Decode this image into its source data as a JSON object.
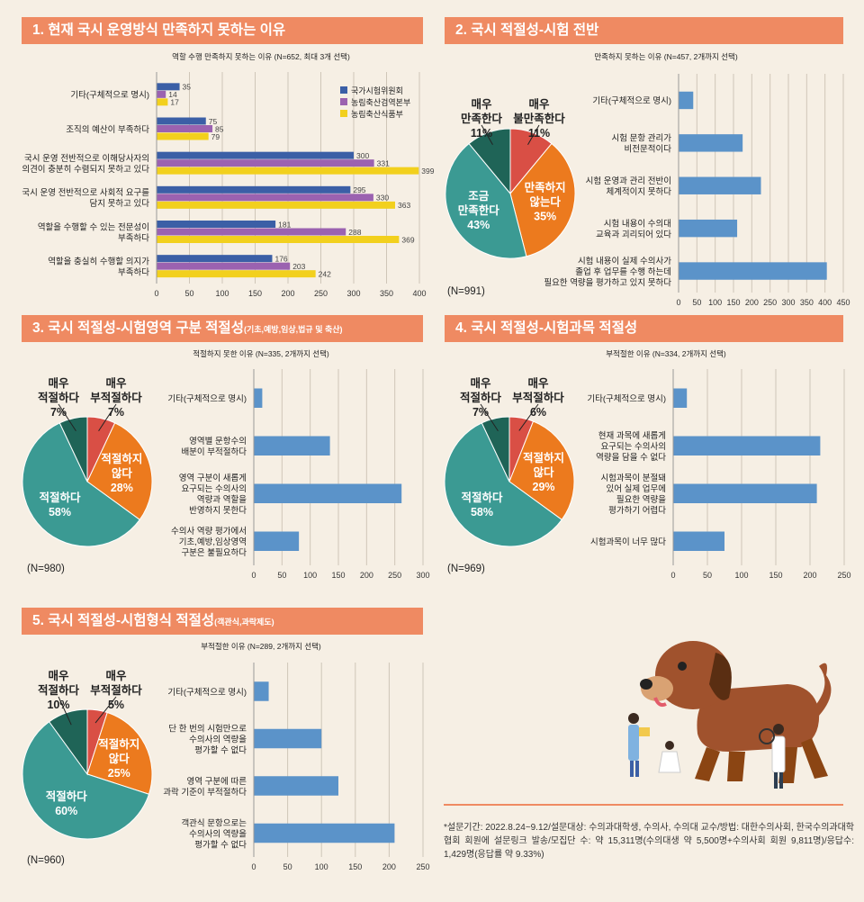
{
  "s1": {
    "title": "1. 현재 국시 운영방식 만족하지 못하는 이유",
    "subtitle": "역할 수행 만족하지 못하는 이유 (N=652, 최대 3개 선택)",
    "chart_data": {
      "type": "bar",
      "orientation": "horizontal",
      "categories": [
        "기타(구체적으로 명시)",
        "조직의 예산이 부족하다",
        "국시 운영 전반적으로 이해당사자의 의견이 충분히 수렴되지 못하고 있다",
        "국시 운영 전반적으로 사회적 요구를 담지 못하고 있다",
        "역할을 수행할 수 있는 전문성이 부족하다",
        "역할을 충실히 수행할 의지가 부족하다"
      ],
      "category_lines": [
        [
          "기타(구체적으로 명시)"
        ],
        [
          "조직의 예산이 부족하다"
        ],
        [
          "국시 운영 전반적으로 이해당사자의",
          "의견이 충분히 수렴되지 못하고 있다"
        ],
        [
          "국시 운영 전반적으로 사회적 요구를",
          "담지 못하고 있다"
        ],
        [
          "역할을 수행할 수 있는 전문성이",
          "부족하다"
        ],
        [
          "역할을 충실히 수행할 의지가",
          "부족하다"
        ]
      ],
      "series": [
        {
          "name": "국가시험위원회",
          "color": "#3b5fa6",
          "values": [
            35,
            75,
            300,
            295,
            181,
            176
          ]
        },
        {
          "name": "농림축산검역본부",
          "color": "#9b62b0",
          "values": [
            14,
            85,
            331,
            330,
            288,
            203
          ]
        },
        {
          "name": "농림축산식품부",
          "color": "#f2d01d",
          "values": [
            17,
            79,
            399,
            363,
            369,
            242
          ]
        }
      ],
      "xlim": [
        0,
        400
      ],
      "ticks": [
        0,
        50,
        100,
        150,
        200,
        250,
        300,
        350,
        400
      ]
    }
  },
  "s2": {
    "title": "2. 국시 적절성-시험 전반",
    "subtitle": "만족하지 못하는 이유 (N=457, 2개까지 선택)",
    "n": "(N=991)",
    "pie": {
      "type": "pie",
      "slices": [
        {
          "lines": [
            "매우",
            "불만족한다",
            "11%"
          ],
          "value": 11,
          "color": "#d94f45"
        },
        {
          "lines": [
            "만족하지",
            "않는다",
            "35%"
          ],
          "value": 35,
          "color": "#ec7a1e"
        },
        {
          "lines": [
            "조금",
            "만족한다",
            "43%"
          ],
          "value": 43,
          "color": "#3b9a93"
        },
        {
          "lines": [
            "매우",
            "만족한다",
            "11%"
          ],
          "value": 11,
          "color": "#1f6457"
        }
      ]
    },
    "chart_data": {
      "type": "bar",
      "orientation": "horizontal",
      "categories": [
        "기타(구체적으로 명시)",
        "시험 문항 관리가 비전문적이다",
        "시험 운영과 관리 전반이 체계적이지 못하다",
        "시험 내용이 수의대 교육과 괴리되어 있다",
        "시험 내용이 실제 수의사가 졸업 후 업무를 수행 하는데 필요한 역량을 평가하고 있지 못하다"
      ],
      "category_lines": [
        [
          "기타(구체적으로 명시)"
        ],
        [
          "시험 문항 관리가",
          "비전문적이다"
        ],
        [
          "시험 운영과 관리 전반이",
          "체계적이지 못하다"
        ],
        [
          "시험 내용이 수의대",
          "교육과 괴리되어 있다"
        ],
        [
          "시험 내용이 실제 수의사가",
          "졸업 후 업무를 수행 하는데",
          "필요한 역량을 평가하고 있지 못하다"
        ]
      ],
      "values": [
        40,
        175,
        225,
        160,
        405
      ],
      "color": "#5b93c9",
      "xlim": [
        0,
        450
      ],
      "ticks": [
        0,
        50,
        100,
        150,
        200,
        250,
        300,
        350,
        400,
        450
      ]
    }
  },
  "s3": {
    "title": "3. 국시 적절성-시험영역 구분 적절성",
    "title_small": "(기초,예방,임상,법규 및 축산)",
    "subtitle": "적절하지 못한 이유 (N=335, 2개까지 선택)",
    "n": "(N=980)",
    "pie": {
      "type": "pie",
      "slices": [
        {
          "lines": [
            "매우",
            "부적절하다",
            "7%"
          ],
          "value": 7,
          "color": "#d94f45"
        },
        {
          "lines": [
            "적절하지",
            "않다",
            "28%"
          ],
          "value": 28,
          "color": "#ec7a1e"
        },
        {
          "lines": [
            "적절하다",
            "58%"
          ],
          "value": 58,
          "color": "#3b9a93"
        },
        {
          "lines": [
            "매우",
            "적절하다",
            "7%"
          ],
          "value": 7,
          "color": "#1f6457"
        }
      ]
    },
    "chart_data": {
      "type": "bar",
      "orientation": "horizontal",
      "categories": [
        "기타(구체적으로 명시)",
        "영역별 문항수의 배분이 부적절하다",
        "영역 구분이 새롭게 요구되는 수의사의 역량과 역할을 반영하지 못한다",
        "수의사 역량 평가에서 기초,예방,임상영역 구분은 불필요하다"
      ],
      "category_lines": [
        [
          "기타(구체적으로 명시)"
        ],
        [
          "영역별 문항수의",
          "배분이 부적절하다"
        ],
        [
          "영역 구분이 새롭게",
          "요구되는 수의사의",
          "역량과 역할을",
          "반영하지 못한다"
        ],
        [
          "수의사 역량 평가에서",
          "기초,예방,임상영역",
          "구분은 불필요하다"
        ]
      ],
      "values": [
        15,
        135,
        262,
        80
      ],
      "color": "#5b93c9",
      "xlim": [
        0,
        300
      ],
      "ticks": [
        0,
        50,
        100,
        150,
        200,
        250,
        300
      ]
    }
  },
  "s4": {
    "title": "4. 국시 적절성-시험과목 적절성",
    "subtitle": "부적절한 이유 (N=334, 2개까지 선택)",
    "n": "(N=969)",
    "pie": {
      "type": "pie",
      "slices": [
        {
          "lines": [
            "매우",
            "부적절하다",
            "6%"
          ],
          "value": 6,
          "color": "#d94f45"
        },
        {
          "lines": [
            "적절하지",
            "않다",
            "29%"
          ],
          "value": 29,
          "color": "#ec7a1e"
        },
        {
          "lines": [
            "적절하다",
            "58%"
          ],
          "value": 58,
          "color": "#3b9a93"
        },
        {
          "lines": [
            "매우",
            "적절하다",
            "7%"
          ],
          "value": 7,
          "color": "#1f6457"
        }
      ]
    },
    "chart_data": {
      "type": "bar",
      "orientation": "horizontal",
      "categories": [
        "기타(구체적으로 명시)",
        "현재 과목에 새롭게 요구되는 수의사의 역량을 담을 수 없다",
        "시험과목이 분절돼 있어 실제 업무에 필요한 역량을 평가하기 어렵다",
        "시험과목이 너무 많다"
      ],
      "category_lines": [
        [
          "기타(구체적으로 명시)"
        ],
        [
          "현재 과목에 새롭게",
          "요구되는 수의사의",
          "역량을 담을 수 없다"
        ],
        [
          "시험과목이 분절돼",
          "있어 실제 업무에",
          "필요한 역량을",
          "평가하기 어렵다"
        ],
        [
          "시험과목이 너무 많다"
        ]
      ],
      "values": [
        20,
        215,
        210,
        75
      ],
      "color": "#5b93c9",
      "xlim": [
        0,
        250
      ],
      "ticks": [
        0,
        50,
        100,
        150,
        200,
        250
      ]
    }
  },
  "s5": {
    "title": "5. 국시 적절성-시험형식 적절성",
    "title_small": "(객관식,과락제도)",
    "subtitle": "부적절한 이유 (N=289, 2개까지 선택)",
    "n": "(N=960)",
    "pie": {
      "type": "pie",
      "slices": [
        {
          "lines": [
            "매우",
            "부적절하다",
            "5%"
          ],
          "value": 5,
          "color": "#d94f45"
        },
        {
          "lines": [
            "적절하지",
            "않다",
            "25%"
          ],
          "value": 25,
          "color": "#ec7a1e"
        },
        {
          "lines": [
            "적절하다",
            "60%"
          ],
          "value": 60,
          "color": "#3b9a93"
        },
        {
          "lines": [
            "매우",
            "적절하다",
            "10%"
          ],
          "value": 10,
          "color": "#1f6457"
        }
      ]
    },
    "chart_data": {
      "type": "bar",
      "orientation": "horizontal",
      "categories": [
        "기타(구체적으로 명시)",
        "단 한 번의 시험만으로 수의사의 역량을 평가할 수 없다",
        "영역 구분에 따른 과락 기준이 부적절하다",
        "객관식 문항으로는 수의사의 역량을 평가할 수 없다"
      ],
      "category_lines": [
        [
          "기타(구체적으로 명시)"
        ],
        [
          "단 한 번의 시험만으로",
          "수의사의 역량을",
          "평가할 수 없다"
        ],
        [
          "영역 구분에 따른",
          "과락 기준이 부적절하다"
        ],
        [
          "객관식 문항으로는",
          "수의사의 역량을",
          "평가할 수 없다"
        ]
      ],
      "values": [
        22,
        100,
        125,
        208
      ],
      "color": "#5b93c9",
      "xlim": [
        0,
        250
      ],
      "ticks": [
        0,
        50,
        100,
        150,
        200,
        250
      ]
    }
  },
  "footnote": "*설문기간: 2022.8.24~9.12/설문대상: 수의과대학생, 수의사, 수의대 교수/방법: 대한수의사회, 한국수의과대학협회 회원에 설문링크 발송/모집단 수: 약 15,311명(수의대생 약 5,500명+수의사회 회원 9,811명)/응답수: 1,429명(응답률 약 9.33%)"
}
